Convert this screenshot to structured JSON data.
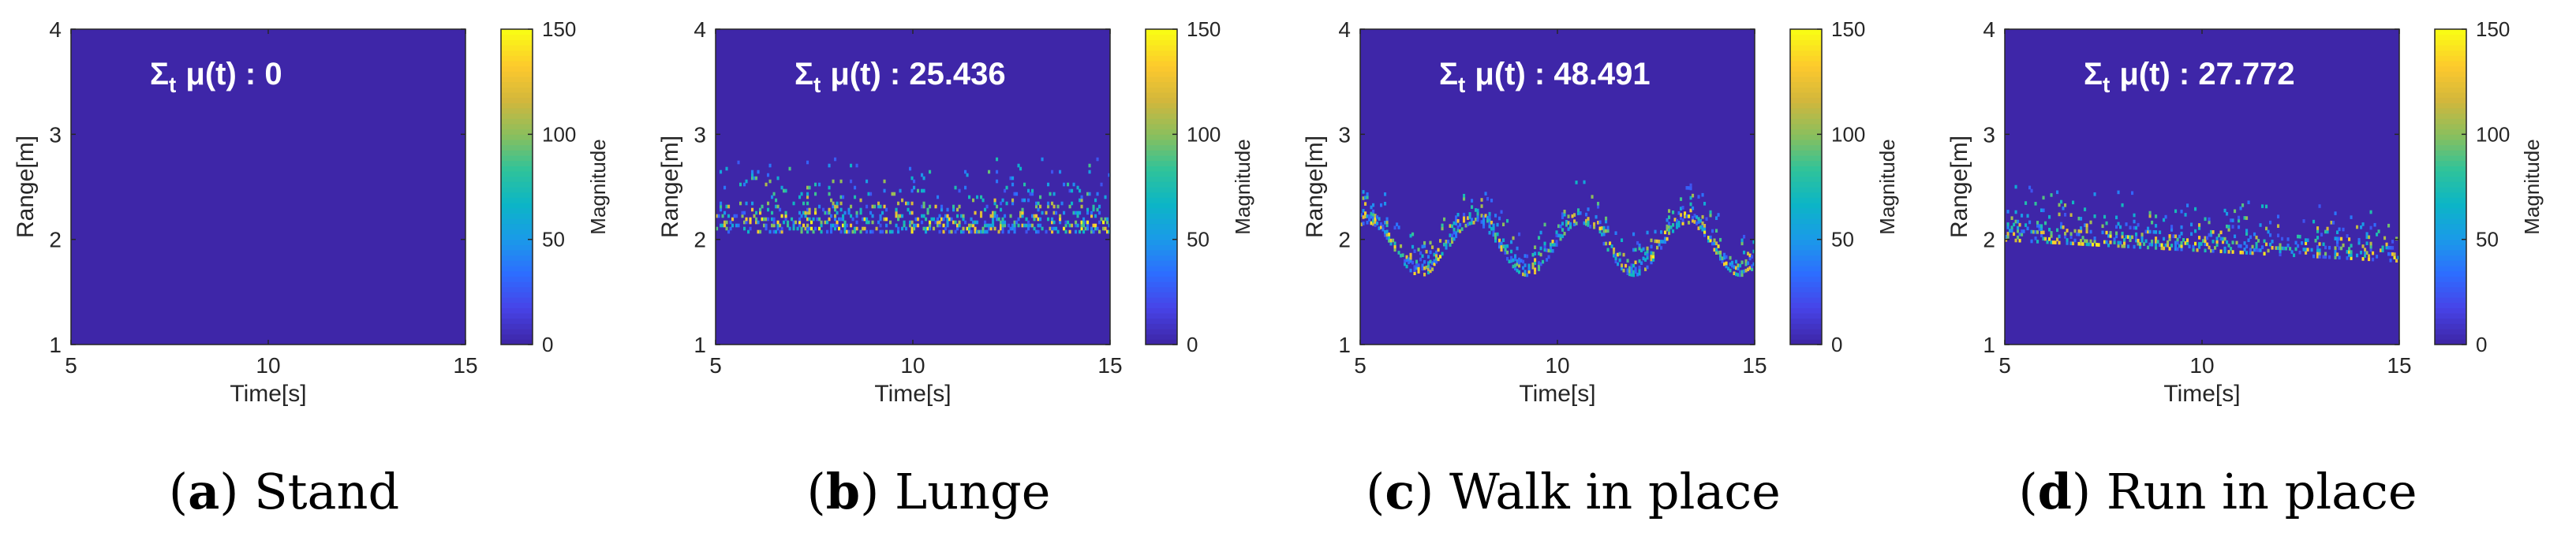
{
  "chart_data": [
    {
      "type": "heatmap",
      "panel_label": "a",
      "caption": "Stand",
      "annotation_prefix": "μ(t) : ",
      "annotation_value": "0",
      "sum_symbol": "Σ",
      "sum_sub": "t",
      "xlabel": "Time[s]",
      "ylabel": "Range[m]",
      "xlim": [
        5,
        15
      ],
      "ylim": [
        1,
        4
      ],
      "xticks": [
        "5",
        "10",
        "15"
      ],
      "yticks": [
        "1",
        "2",
        "3",
        "4"
      ],
      "colorbar": {
        "label": "Magnitude",
        "range": [
          0,
          150
        ],
        "ticks": [
          "0",
          "50",
          "100",
          "150"
        ]
      },
      "activity": {
        "pattern": "none",
        "center_m": 0,
        "amplitude_m": 0,
        "period_s": 0,
        "spread_m": 0,
        "density": 0
      }
    },
    {
      "type": "heatmap",
      "panel_label": "b",
      "caption": "Lunge",
      "annotation_prefix": "μ(t) : ",
      "annotation_value": "25.436",
      "sum_symbol": "Σ",
      "sum_sub": "t",
      "xlabel": "Time[s]",
      "ylabel": "Range[m]",
      "xlim": [
        5,
        15
      ],
      "ylim": [
        1,
        4
      ],
      "xticks": [
        "5",
        "10",
        "15"
      ],
      "yticks": [
        "1",
        "2",
        "3",
        "4"
      ],
      "colorbar": {
        "label": "Magnitude",
        "range": [
          0,
          150
        ],
        "ticks": [
          "0",
          "50",
          "100",
          "150"
        ]
      },
      "activity": {
        "pattern": "band",
        "center_m": 2.15,
        "amplitude_m": 0,
        "period_s": 0,
        "spread_m": 0.6,
        "density": 0.35
      }
    },
    {
      "type": "heatmap",
      "panel_label": "c",
      "caption": "Walk in place",
      "annotation_prefix": "μ(t) : ",
      "annotation_value": "48.491",
      "sum_symbol": "Σ",
      "sum_sub": "t",
      "xlabel": "Time[s]",
      "ylabel": "Range[m]",
      "xlim": [
        5,
        15
      ],
      "ylim": [
        1,
        4
      ],
      "xticks": [
        "5",
        "10",
        "15"
      ],
      "yticks": [
        "1",
        "2",
        "3",
        "4"
      ],
      "colorbar": {
        "label": "Magnitude",
        "range": [
          0,
          150
        ],
        "ticks": [
          "0",
          "50",
          "100",
          "150"
        ]
      },
      "activity": {
        "pattern": "sine",
        "center_m": 1.95,
        "amplitude_m": 0.25,
        "period_s": 2.7,
        "spread_m": 0.35,
        "density": 0.5
      }
    },
    {
      "type": "heatmap",
      "panel_label": "d",
      "caption": "Run in place",
      "annotation_prefix": "μ(t) : ",
      "annotation_value": "27.772",
      "sum_symbol": "Σ",
      "sum_sub": "t",
      "xlabel": "Time[s]",
      "ylabel": "Range[m]",
      "xlim": [
        5,
        15
      ],
      "ylim": [
        1,
        4
      ],
      "xticks": [
        "5",
        "10",
        "15"
      ],
      "yticks": [
        "1",
        "2",
        "3",
        "4"
      ],
      "colorbar": {
        "label": "Magnitude",
        "range": [
          0,
          150
        ],
        "ticks": [
          "0",
          "50",
          "100",
          "150"
        ]
      },
      "activity": {
        "pattern": "slope",
        "center_m": 2.05,
        "amplitude_m": -0.2,
        "period_s": 0,
        "spread_m": 0.45,
        "density": 0.32
      }
    }
  ],
  "colors": {
    "background": "#3E26A8",
    "parula_stops": [
      "#3E26A8",
      "#4744E8",
      "#2D6EFF",
      "#1A9BE8",
      "#0CB5C6",
      "#2FC39A",
      "#8ABF5D",
      "#D2B73C",
      "#FDC92D",
      "#F9FB15"
    ]
  }
}
